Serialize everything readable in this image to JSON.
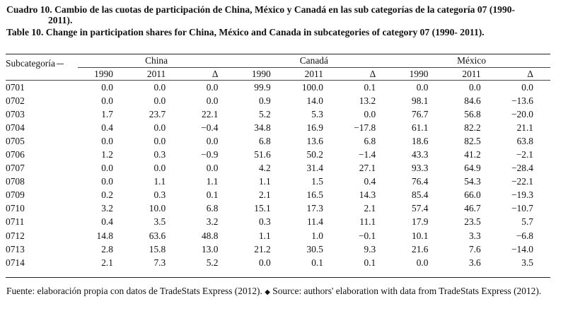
{
  "title_es_line1": "Cuadro 10. Cambio de las cuotas de participación de China, México y Canadá en las sub categorías de la categoría 07 (1990-",
  "title_es_line2": "2011).",
  "title_en": "Table 10. Change in participation shares for China, México and Canada in subcategories of category 07 (1990- 2011).",
  "table": {
    "subcat_header": "Subcategoría",
    "countries": [
      "China",
      "Canadá",
      "México"
    ],
    "sub_headers": [
      "1990",
      "2011",
      "Δ"
    ],
    "rows": [
      {
        "code": "0701",
        "vals": [
          "0.0",
          "0.0",
          "0.0",
          "99.9",
          "100.0",
          "0.1",
          "0.0",
          "0.0",
          "0.0"
        ]
      },
      {
        "code": "0702",
        "vals": [
          "0.0",
          "0.0",
          "0.0",
          "0.9",
          "14.0",
          "13.2",
          "98.1",
          "84.6",
          "−13.6"
        ]
      },
      {
        "code": "0703",
        "vals": [
          "1.7",
          "23.7",
          "22.1",
          "5.2",
          "5.3",
          "0.0",
          "76.7",
          "56.8",
          "−20.0"
        ]
      },
      {
        "code": "0704",
        "vals": [
          "0.4",
          "0.0",
          "−0.4",
          "34.8",
          "16.9",
          "−17.8",
          "61.1",
          "82.2",
          "21.1"
        ]
      },
      {
        "code": "0705",
        "vals": [
          "0.0",
          "0.0",
          "0.0",
          "6.8",
          "13.6",
          "6.8",
          "18.6",
          "82.5",
          "63.8"
        ]
      },
      {
        "code": "0706",
        "vals": [
          "1.2",
          "0.3",
          "−0.9",
          "51.6",
          "50.2",
          "−1.4",
          "43.3",
          "41.2",
          "−2.1"
        ]
      },
      {
        "code": "0707",
        "vals": [
          "0.0",
          "0.0",
          "0.0",
          "4.2",
          "31.4",
          "27.1",
          "93.3",
          "64.9",
          "−28.4"
        ]
      },
      {
        "code": "0708",
        "vals": [
          "0.0",
          "1.1",
          "1.1",
          "1.1",
          "1.5",
          "0.4",
          "76.4",
          "54.3",
          "−22.1"
        ]
      },
      {
        "code": "0709",
        "vals": [
          "0.2",
          "0.3",
          "0.1",
          "2.1",
          "16.5",
          "14.3",
          "85.4",
          "66.0",
          "−19.3"
        ]
      },
      {
        "code": "0710",
        "vals": [
          "3.2",
          "10.0",
          "6.8",
          "15.1",
          "17.3",
          "2.1",
          "57.4",
          "46.7",
          "−10.7"
        ]
      },
      {
        "code": "0711",
        "vals": [
          "0.4",
          "3.5",
          "3.2",
          "0.3",
          "11.4",
          "11.1",
          "17.9",
          "23.5",
          "5.7"
        ]
      },
      {
        "code": "0712",
        "vals": [
          "14.8",
          "63.6",
          "48.8",
          "1.1",
          "1.0",
          "−0.1",
          "10.1",
          "3.3",
          "−6.8"
        ]
      },
      {
        "code": "0713",
        "vals": [
          "2.8",
          "15.8",
          "13.0",
          "21.2",
          "30.5",
          "9.3",
          "21.6",
          "7.6",
          "−14.0"
        ]
      },
      {
        "code": "0714",
        "vals": [
          "2.1",
          "7.3",
          "5.2",
          "0.0",
          "0.1",
          "0.1",
          "0.0",
          "3.6",
          "3.5"
        ]
      }
    ]
  },
  "footer": {
    "es": "Fuente: elaboración propia con datos de TradeStats Express (2012).",
    "separator": "◆",
    "en": "Source: authors' elaboration with data from TradeStats Express (2012)."
  }
}
